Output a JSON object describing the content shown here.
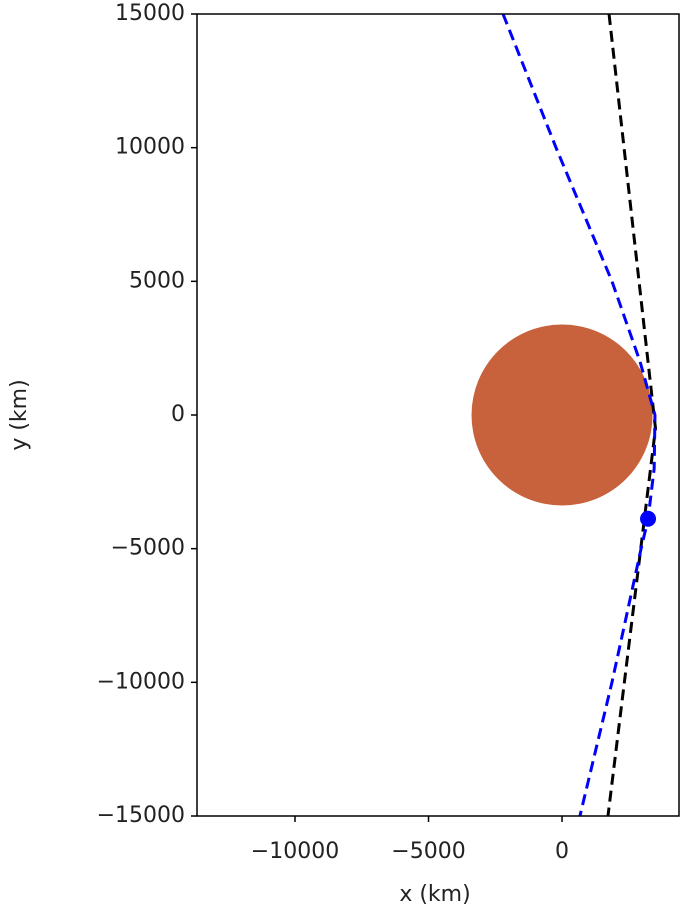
{
  "chart_data": {
    "type": "line",
    "xlabel": "x (km)",
    "ylabel": "y (km)",
    "xlim": [
      -13670,
      4380
    ],
    "ylim": [
      -15000,
      15000
    ],
    "xticks": [
      {
        "value": -10000,
        "label": "−10000"
      },
      {
        "value": -5000,
        "label": "−5000"
      },
      0
    ],
    "yticks": [
      {
        "value": -15000,
        "label": "−15000"
      },
      {
        "value": -10000,
        "label": "−10000"
      },
      {
        "value": -5000,
        "label": "−5000"
      },
      0,
      5000,
      10000,
      15000
    ],
    "grid": false,
    "circle": {
      "center": [
        0,
        0
      ],
      "radius": 3390,
      "color": "#c8623c"
    },
    "series": [
      {
        "color": "#0000ff",
        "style": "dashed",
        "x": [
          -2210,
          -225,
          1870,
          2920,
          3480,
          3450,
          3220,
          2960,
          1870,
          670
        ],
        "values": [
          15000,
          10000,
          5000,
          2000,
          0,
          -2000,
          -3900,
          -5000,
          -10000,
          -15000
        ]
      },
      {
        "color": "#000000",
        "style": "dashed",
        "x": [
          1760,
          3500,
          1720
        ],
        "values": [
          15000,
          -500,
          -15000
        ]
      },
      {
        "color": "#0000ff",
        "style": "marker",
        "x": [
          3220
        ],
        "values": [
          -3880
        ]
      }
    ]
  }
}
